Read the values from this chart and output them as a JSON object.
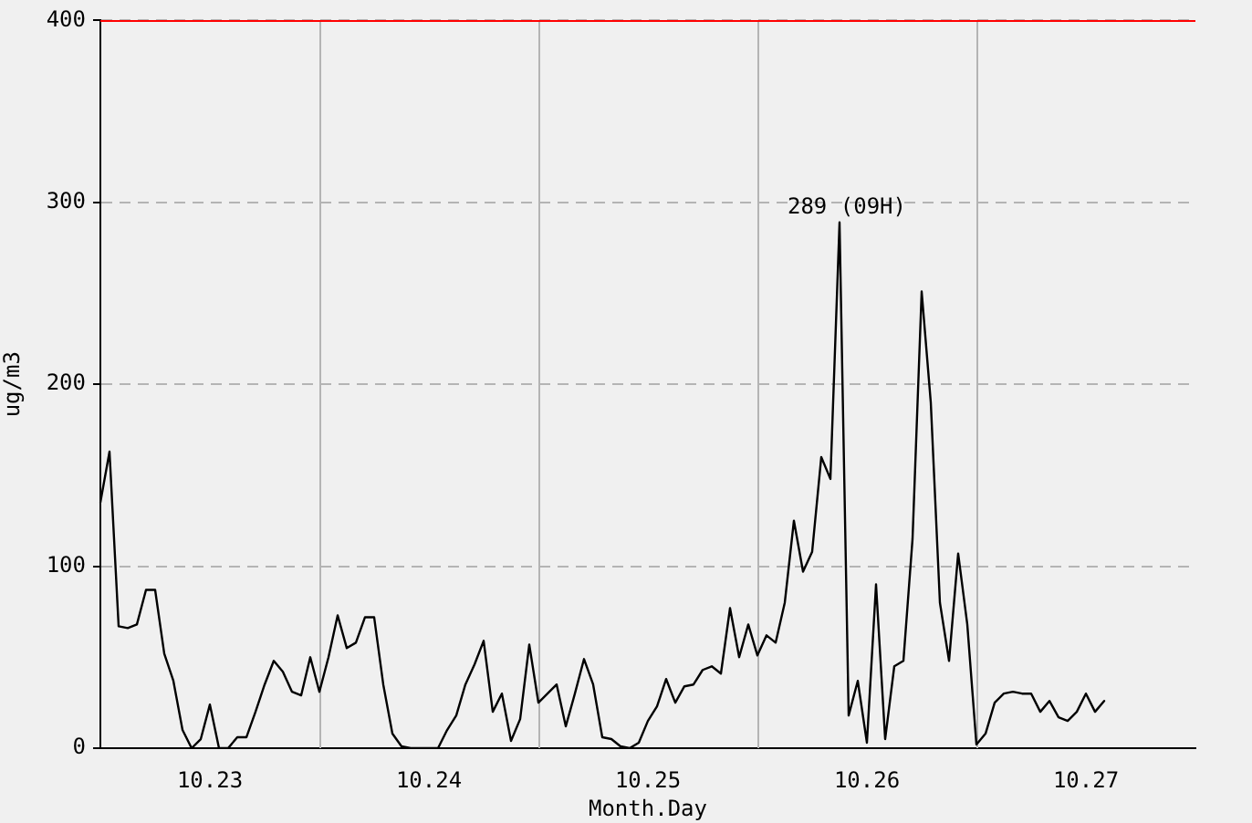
{
  "chart_data": {
    "type": "line",
    "xlabel": "Month.Day",
    "ylabel": "ug/m3",
    "categories": [
      null,
      null,
      null,
      null,
      null,
      null,
      null,
      null,
      null,
      null,
      null,
      null,
      "10.23",
      null,
      null,
      null,
      null,
      null,
      null,
      null,
      null,
      null,
      null,
      null,
      null,
      null,
      null,
      null,
      null,
      null,
      null,
      null,
      null,
      null,
      null,
      null,
      "10.24",
      null,
      null,
      null,
      null,
      null,
      null,
      null,
      null,
      null,
      null,
      null,
      null,
      null,
      null,
      null,
      null,
      null,
      null,
      null,
      null,
      null,
      null,
      null,
      "10.25",
      null,
      null,
      null,
      null,
      null,
      null,
      null,
      null,
      null,
      null,
      null,
      null,
      null,
      null,
      null,
      null,
      null,
      null,
      null,
      null,
      null,
      null,
      null,
      "10.26",
      null,
      null,
      null,
      null,
      null,
      null,
      null,
      null,
      null,
      null,
      null,
      null,
      null,
      null,
      null,
      null,
      null,
      null,
      null,
      null,
      null,
      null,
      null,
      "10.27",
      null,
      null,
      null,
      null,
      null,
      null,
      null,
      null,
      null,
      null,
      null,
      null
    ],
    "series": [
      {
        "color": "#000000",
        "values": [
          135,
          163,
          67,
          66,
          68,
          87,
          87,
          52,
          37,
          10,
          0,
          5,
          24,
          0,
          0,
          6,
          6,
          20,
          35,
          48,
          42,
          31,
          29,
          50,
          31,
          50,
          73,
          55,
          58,
          72,
          72,
          35,
          8,
          1,
          0,
          0,
          0,
          0,
          10,
          18,
          35,
          46,
          59,
          20,
          30,
          4,
          16,
          57,
          25,
          30,
          35,
          12,
          30,
          49,
          35,
          6,
          5,
          1,
          0,
          3,
          15,
          23,
          38,
          25,
          34,
          35,
          43,
          45,
          41,
          77,
          50,
          68,
          51,
          62,
          58,
          80,
          125,
          97,
          108,
          160,
          148,
          289,
          18,
          37,
          3,
          90,
          5,
          45,
          48,
          115,
          251,
          190,
          80,
          48,
          107,
          68,
          2,
          8,
          25,
          30,
          31,
          30,
          30,
          20,
          26,
          17,
          15,
          20,
          30,
          20,
          26,
          null,
          null,
          null,
          null,
          null,
          null,
          null,
          null,
          null,
          null
        ]
      }
    ],
    "ylim": [
      0,
      400
    ],
    "yticks": [
      0,
      100,
      200,
      300,
      400
    ],
    "grid": true,
    "legend": false,
    "marker": "none",
    "line_style": "solid",
    "ref_lines": [
      {
        "axis": "y",
        "value": 400,
        "color": "#ff0000"
      }
    ],
    "annotations": [
      {
        "text": "289 (09H)",
        "y": 289
      }
    ]
  }
}
